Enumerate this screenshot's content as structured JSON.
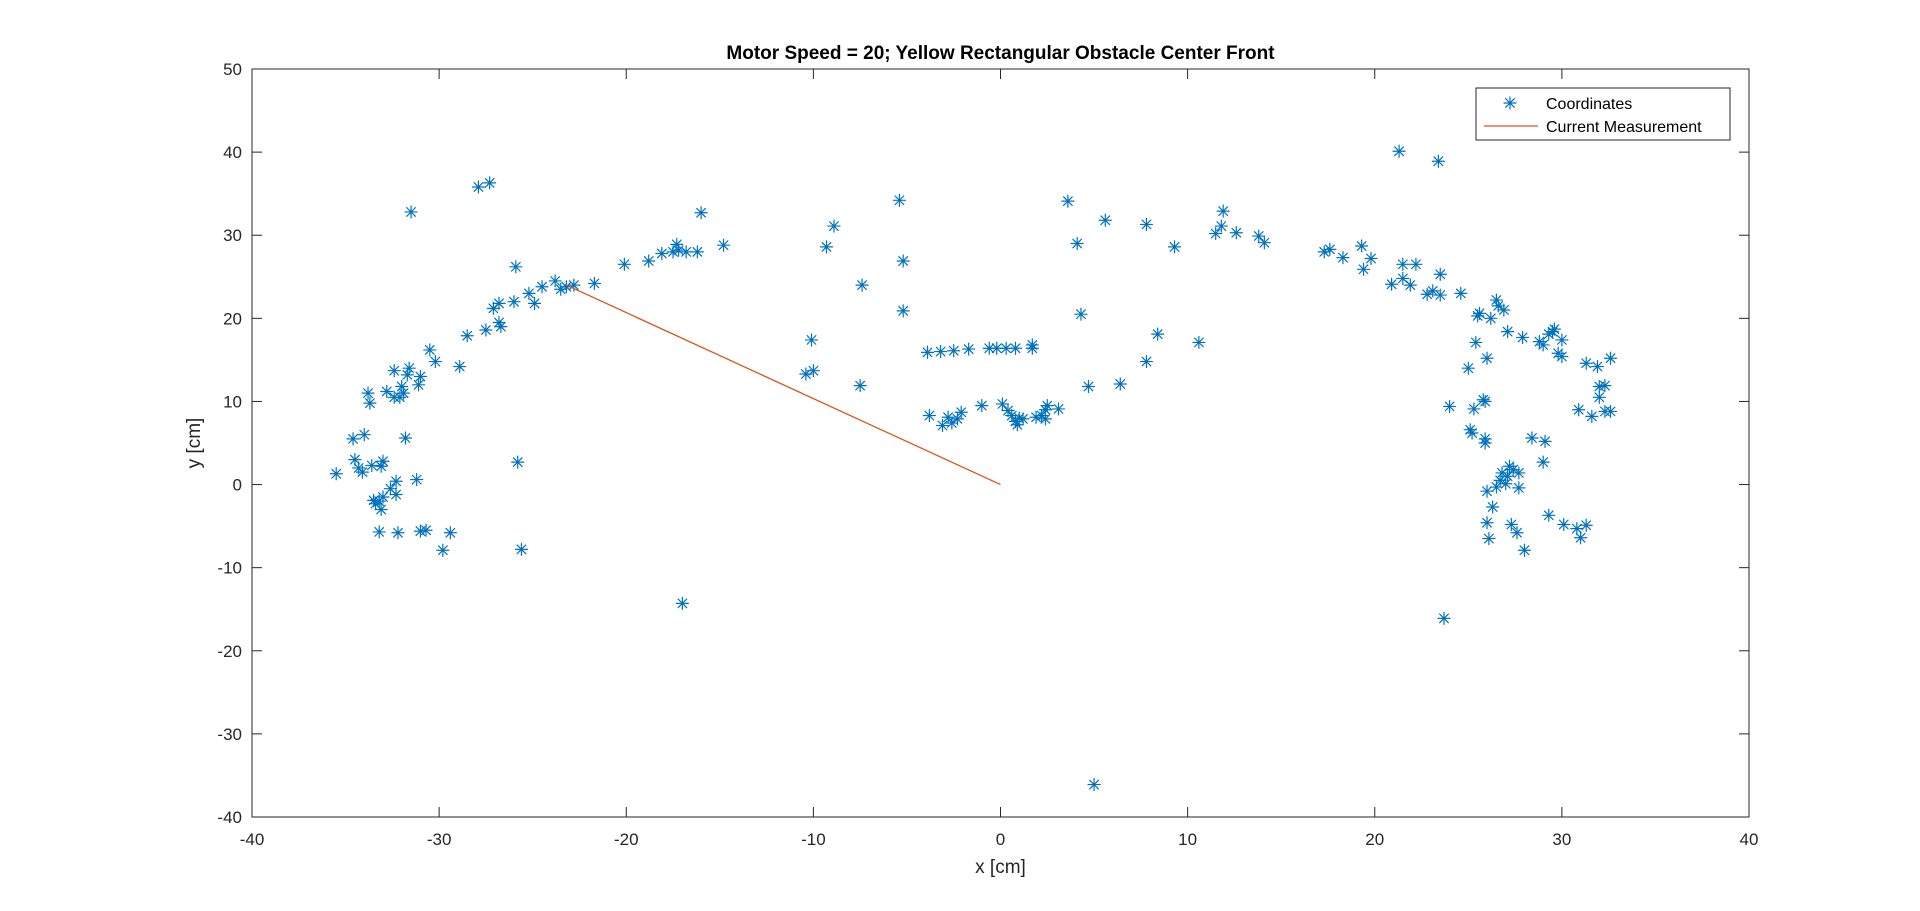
{
  "chart_data": {
    "type": "scatter",
    "title": "Motor Speed = 20; Yellow Rectangular Obstacle Center Front",
    "xlabel": "x [cm]",
    "ylabel": "y [cm]",
    "xlim": [
      -40,
      40
    ],
    "ylim": [
      -40,
      50
    ],
    "xticks": [
      -40,
      -30,
      -20,
      -10,
      0,
      10,
      20,
      30,
      40
    ],
    "yticks": [
      -40,
      -30,
      -20,
      -10,
      0,
      10,
      20,
      30,
      40,
      50
    ],
    "x_tick_labels": [
      "-40",
      "-30",
      "-20",
      "-10",
      "0",
      "10",
      "20",
      "30",
      "40"
    ],
    "y_tick_labels": [
      "-40",
      "-30",
      "-20",
      "-10",
      "0",
      "10",
      "20",
      "30",
      "40",
      "50"
    ],
    "grid": false,
    "legend_position": "top-right",
    "colors": {
      "coordinates": "#0072BD",
      "current_measurement": "#D95319",
      "axes": "#262626"
    },
    "series": [
      {
        "name": "Coordinates",
        "kind": "scatter",
        "marker": "asterisk",
        "points": [
          [
            -35.5,
            1.3
          ],
          [
            -34.6,
            5.5
          ],
          [
            -34.5,
            3.0
          ],
          [
            -34.3,
            2.0
          ],
          [
            -34.1,
            1.5
          ],
          [
            -34.0,
            6.0
          ],
          [
            -33.8,
            11.0
          ],
          [
            -33.7,
            9.8
          ],
          [
            -33.6,
            2.3
          ],
          [
            -33.5,
            -1.9
          ],
          [
            -33.4,
            -2.3
          ],
          [
            -33.2,
            -2.0
          ],
          [
            -33.1,
            2.2
          ],
          [
            -33.0,
            2.8
          ],
          [
            -33.0,
            -1.5
          ],
          [
            -33.1,
            -3.0
          ],
          [
            -33.2,
            -5.7
          ],
          [
            -32.8,
            11.2
          ],
          [
            -32.6,
            -0.5
          ],
          [
            -32.4,
            13.7
          ],
          [
            -32.4,
            10.5
          ],
          [
            -32.3,
            0.4
          ],
          [
            -32.1,
            10.5
          ],
          [
            -32.0,
            11.8
          ],
          [
            -31.9,
            11.0
          ],
          [
            -32.2,
            -5.8
          ],
          [
            -32.3,
            -1.2
          ],
          [
            -31.7,
            13.2
          ],
          [
            -31.6,
            14.0
          ],
          [
            -31.8,
            5.6
          ],
          [
            -31.5,
            32.8
          ],
          [
            -31.2,
            0.6
          ],
          [
            -31.0,
            -5.6
          ],
          [
            -31.1,
            12.0
          ],
          [
            -31.0,
            13.0
          ],
          [
            -30.7,
            -5.5
          ],
          [
            -30.5,
            16.2
          ],
          [
            -30.2,
            14.8
          ],
          [
            -29.8,
            -7.9
          ],
          [
            -29.4,
            -5.8
          ],
          [
            -28.9,
            14.2
          ],
          [
            -28.5,
            17.9
          ],
          [
            -27.9,
            35.8
          ],
          [
            -27.5,
            18.6
          ],
          [
            -27.3,
            36.3
          ],
          [
            -27.1,
            21.2
          ],
          [
            -26.8,
            21.8
          ],
          [
            -26.8,
            19.5
          ],
          [
            -26.7,
            19.0
          ],
          [
            -26.0,
            22.0
          ],
          [
            -25.9,
            26.2
          ],
          [
            -25.8,
            2.7
          ],
          [
            -25.6,
            -7.8
          ],
          [
            -25.2,
            23.0
          ],
          [
            -24.9,
            21.8
          ],
          [
            -24.5,
            23.8
          ],
          [
            -23.8,
            24.5
          ],
          [
            -23.5,
            23.5
          ],
          [
            -23.2,
            23.8
          ],
          [
            -22.8,
            24.0
          ],
          [
            -21.7,
            24.2
          ],
          [
            -20.1,
            26.5
          ],
          [
            -18.8,
            26.9
          ],
          [
            -18.1,
            27.8
          ],
          [
            -17.5,
            28.0
          ],
          [
            -17.3,
            28.9
          ],
          [
            -17.2,
            28.2
          ],
          [
            -17.0,
            -14.3
          ],
          [
            -16.8,
            28.0
          ],
          [
            -16.2,
            28.0
          ],
          [
            -16.0,
            32.7
          ],
          [
            -14.8,
            28.8
          ],
          [
            -10.4,
            13.3
          ],
          [
            -10.1,
            17.4
          ],
          [
            -10.0,
            13.7
          ],
          [
            -9.3,
            28.6
          ],
          [
            -8.9,
            31.1
          ],
          [
            -7.4,
            24.0
          ],
          [
            -7.5,
            11.9
          ],
          [
            -5.4,
            34.2
          ],
          [
            -5.2,
            26.9
          ],
          [
            -5.2,
            20.9
          ],
          [
            -3.9,
            15.9
          ],
          [
            -3.8,
            8.3
          ],
          [
            -3.2,
            16.0
          ],
          [
            -3.1,
            7.1
          ],
          [
            -2.8,
            8.1
          ],
          [
            -2.6,
            7.4
          ],
          [
            -2.5,
            16.1
          ],
          [
            -2.3,
            7.9
          ],
          [
            -2.1,
            8.7
          ],
          [
            -1.7,
            16.3
          ],
          [
            -1.0,
            9.5
          ],
          [
            -0.6,
            16.4
          ],
          [
            -0.2,
            16.4
          ],
          [
            0.1,
            9.7
          ],
          [
            0.3,
            16.4
          ],
          [
            0.4,
            8.9
          ],
          [
            0.6,
            8.3
          ],
          [
            0.8,
            7.6
          ],
          [
            0.9,
            7.2
          ],
          [
            1.0,
            8.0
          ],
          [
            0.8,
            16.4
          ],
          [
            1.2,
            7.9
          ],
          [
            1.7,
            16.4
          ],
          [
            1.7,
            16.8
          ],
          [
            1.9,
            8.1
          ],
          [
            2.2,
            8.3
          ],
          [
            2.4,
            9.0
          ],
          [
            2.4,
            7.9
          ],
          [
            2.5,
            9.5
          ],
          [
            3.1,
            9.1
          ],
          [
            3.6,
            34.1
          ],
          [
            4.1,
            29.0
          ],
          [
            4.3,
            20.5
          ],
          [
            4.7,
            11.8
          ],
          [
            5.0,
            -36.1
          ],
          [
            5.6,
            31.8
          ],
          [
            6.4,
            12.1
          ],
          [
            7.8,
            31.3
          ],
          [
            7.8,
            14.8
          ],
          [
            8.4,
            18.1
          ],
          [
            9.3,
            28.6
          ],
          [
            10.6,
            17.1
          ],
          [
            11.5,
            30.2
          ],
          [
            11.8,
            31.1
          ],
          [
            11.9,
            32.9
          ],
          [
            12.6,
            30.3
          ],
          [
            13.8,
            29.9
          ],
          [
            14.1,
            29.1
          ],
          [
            17.3,
            28.0
          ],
          [
            17.6,
            28.3
          ],
          [
            18.3,
            27.3
          ],
          [
            19.3,
            28.7
          ],
          [
            19.4,
            25.9
          ],
          [
            19.8,
            27.2
          ],
          [
            20.9,
            24.1
          ],
          [
            21.3,
            40.1
          ],
          [
            21.5,
            26.5
          ],
          [
            21.5,
            24.8
          ],
          [
            21.9,
            24.0
          ],
          [
            22.2,
            26.5
          ],
          [
            22.8,
            22.9
          ],
          [
            23.1,
            23.3
          ],
          [
            23.4,
            38.9
          ],
          [
            23.5,
            25.3
          ],
          [
            23.5,
            22.8
          ],
          [
            23.7,
            -16.1
          ],
          [
            24.0,
            9.4
          ],
          [
            24.6,
            23.0
          ],
          [
            25.0,
            14.0
          ],
          [
            25.1,
            6.6
          ],
          [
            25.2,
            6.2
          ],
          [
            25.3,
            9.1
          ],
          [
            25.4,
            17.1
          ],
          [
            25.5,
            20.3
          ],
          [
            25.6,
            20.6
          ],
          [
            25.8,
            10.2
          ],
          [
            25.9,
            5.5
          ],
          [
            25.9,
            10.0
          ],
          [
            26.0,
            15.2
          ],
          [
            25.9,
            5.0
          ],
          [
            26.0,
            -0.8
          ],
          [
            26.0,
            -4.6
          ],
          [
            26.1,
            -6.5
          ],
          [
            26.2,
            20.0
          ],
          [
            26.3,
            -2.7
          ],
          [
            26.5,
            22.2
          ],
          [
            26.5,
            -0.3
          ],
          [
            26.6,
            21.5
          ],
          [
            26.7,
            0.5
          ],
          [
            26.8,
            1.4
          ],
          [
            26.9,
            21.0
          ],
          [
            27.0,
            0.1
          ],
          [
            27.1,
            18.4
          ],
          [
            27.1,
            1.0
          ],
          [
            27.2,
            2.2
          ],
          [
            27.3,
            -4.8
          ],
          [
            27.4,
            1.8
          ],
          [
            27.6,
            -5.8
          ],
          [
            27.7,
            -0.4
          ],
          [
            27.7,
            1.4
          ],
          [
            27.9,
            17.7
          ],
          [
            28.0,
            -7.9
          ],
          [
            28.4,
            5.6
          ],
          [
            28.8,
            17.2
          ],
          [
            29.0,
            16.8
          ],
          [
            29.0,
            2.7
          ],
          [
            29.1,
            5.2
          ],
          [
            29.3,
            18.1
          ],
          [
            29.3,
            -3.7
          ],
          [
            29.5,
            18.4
          ],
          [
            29.6,
            18.7
          ],
          [
            29.8,
            15.8
          ],
          [
            30.0,
            15.4
          ],
          [
            30.0,
            17.4
          ],
          [
            30.1,
            -4.8
          ],
          [
            30.8,
            -5.3
          ],
          [
            30.9,
            9.0
          ],
          [
            31.0,
            -6.4
          ],
          [
            31.3,
            -4.9
          ],
          [
            31.3,
            14.6
          ],
          [
            31.6,
            8.2
          ],
          [
            31.9,
            14.2
          ],
          [
            32.0,
            10.5
          ],
          [
            32.0,
            11.8
          ],
          [
            32.3,
            8.8
          ],
          [
            32.3,
            11.9
          ],
          [
            32.6,
            15.2
          ],
          [
            32.6,
            8.8
          ]
        ]
      },
      {
        "name": "Current Measurement",
        "kind": "line",
        "points": [
          [
            0,
            0
          ],
          [
            -23.2,
            24.0
          ]
        ]
      }
    ]
  }
}
